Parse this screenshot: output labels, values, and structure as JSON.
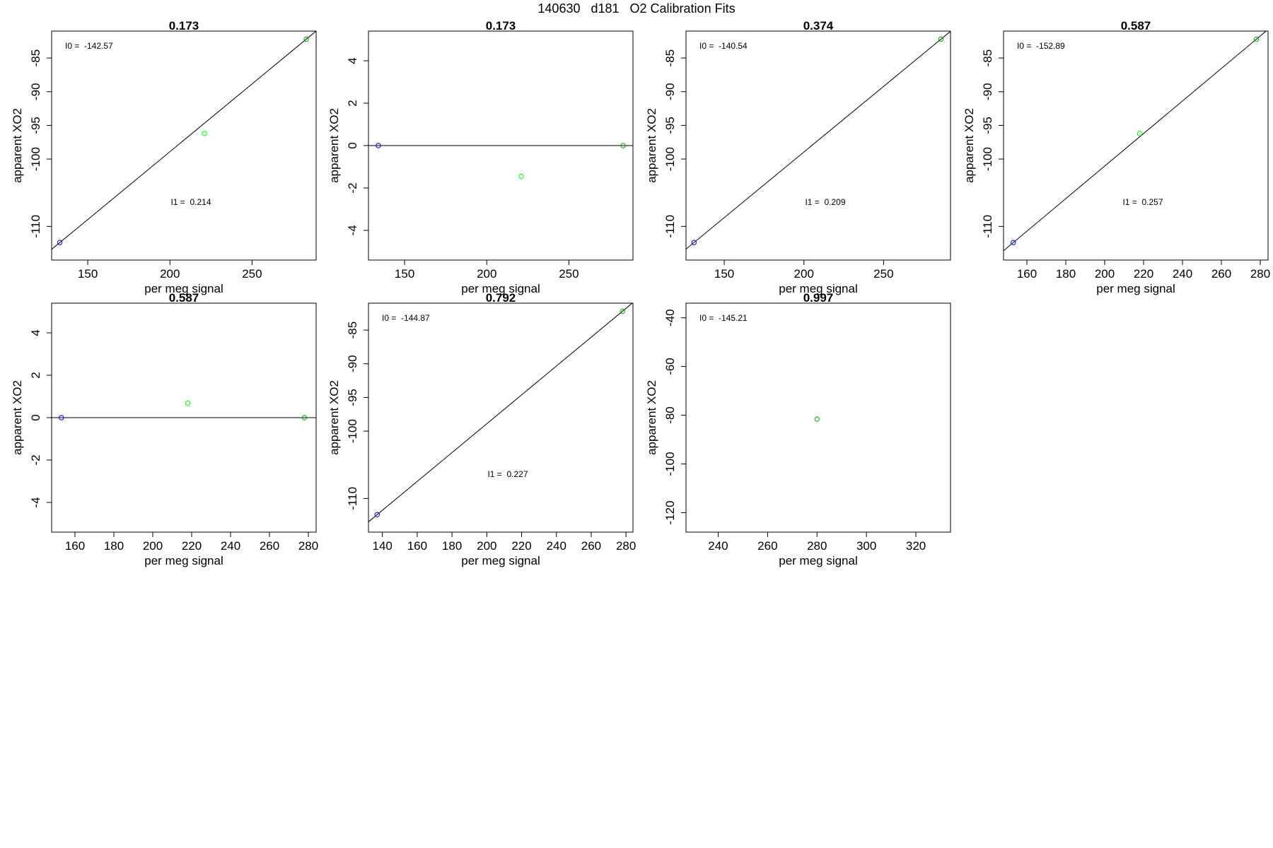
{
  "page": {
    "title": "140630   d181   O2 Calibration Fits"
  },
  "colors": {
    "axis": "#000000",
    "fit_line": "#000000",
    "point_blue": "#0000ff",
    "point_light_green": "#00ff00",
    "point_dark_green": "#00aa00"
  },
  "chart_data": [
    {
      "type": "scatter",
      "title": "0.173",
      "xlabel": "per meg signal",
      "ylabel": "apparent XO2",
      "xlim": [
        128,
        289
      ],
      "ylim": [
        -115,
        -81
      ],
      "xticks": [
        150,
        200,
        250
      ],
      "yticks": [
        -110,
        -100,
        -95,
        -90,
        -85
      ],
      "points": [
        {
          "x": 133,
          "y": -112.4,
          "color": "blue"
        },
        {
          "x": 221,
          "y": -96.2,
          "color": "light_green"
        },
        {
          "x": 283,
          "y": -82.2,
          "color": "dark_green"
        }
      ],
      "fit_line": [
        [
          133,
          -112.4
        ],
        [
          283,
          -82.2
        ]
      ],
      "annotations": [
        {
          "label": "I0 =  -142.57",
          "pos": "top-left"
        },
        {
          "label": "I1 =  0.214",
          "pos": "mid-center"
        }
      ]
    },
    {
      "type": "scatter",
      "title": "0.173",
      "xlabel": "per meg signal",
      "ylabel": "apparent XO2",
      "xlim": [
        128,
        289
      ],
      "ylim": [
        -5.4,
        5.4
      ],
      "xticks": [
        150,
        200,
        250
      ],
      "yticks": [
        -4,
        -2,
        0,
        2,
        4
      ],
      "points": [
        {
          "x": 134,
          "y": 0,
          "color": "blue"
        },
        {
          "x": 221,
          "y": -1.45,
          "color": "light_green"
        },
        {
          "x": 283,
          "y": 0,
          "color": "dark_green"
        }
      ],
      "fit_line": [
        [
          128,
          0
        ],
        [
          289,
          0
        ]
      ],
      "annotations": []
    },
    {
      "type": "scatter",
      "title": "0.374",
      "xlabel": "per meg signal",
      "ylabel": "apparent XO2",
      "xlim": [
        126,
        292
      ],
      "ylim": [
        -115,
        -81
      ],
      "xticks": [
        150,
        200,
        250
      ],
      "yticks": [
        -110,
        -100,
        -95,
        -90,
        -85
      ],
      "points": [
        {
          "x": 131,
          "y": -112.4,
          "color": "blue"
        },
        {
          "x": 286,
          "y": -82.2,
          "color": "dark_green"
        }
      ],
      "fit_line": [
        [
          131,
          -112.4
        ],
        [
          286,
          -82.2
        ]
      ],
      "annotations": [
        {
          "label": "I0 =  -140.54",
          "pos": "top-left"
        },
        {
          "label": "I1 =  0.209",
          "pos": "mid-center"
        }
      ]
    },
    {
      "type": "scatter",
      "title": "0.587",
      "xlabel": "per meg signal",
      "ylabel": "apparent XO2",
      "xlim": [
        148,
        284
      ],
      "ylim": [
        -115,
        -81
      ],
      "xticks": [
        160,
        180,
        200,
        220,
        240,
        260,
        280
      ],
      "yticks": [
        -110,
        -100,
        -95,
        -90,
        -85
      ],
      "points": [
        {
          "x": 153,
          "y": -112.4,
          "color": "blue"
        },
        {
          "x": 218,
          "y": -96.2,
          "color": "light_green"
        },
        {
          "x": 278,
          "y": -82.2,
          "color": "dark_green"
        }
      ],
      "fit_line": [
        [
          153,
          -112.4
        ],
        [
          278,
          -82.2
        ]
      ],
      "annotations": [
        {
          "label": "I0 =  -152.89",
          "pos": "top-left"
        },
        {
          "label": "I1 =  0.257",
          "pos": "mid-center"
        }
      ]
    },
    {
      "type": "scatter",
      "title": "0.587",
      "xlabel": "per meg signal",
      "ylabel": "apparent XO2",
      "xlim": [
        148,
        284
      ],
      "ylim": [
        -5.4,
        5.4
      ],
      "xticks": [
        160,
        180,
        200,
        220,
        240,
        260,
        280
      ],
      "yticks": [
        -4,
        -2,
        0,
        2,
        4
      ],
      "points": [
        {
          "x": 153,
          "y": 0,
          "color": "blue"
        },
        {
          "x": 218,
          "y": 0.68,
          "color": "light_green"
        },
        {
          "x": 278,
          "y": 0,
          "color": "dark_green"
        }
      ],
      "fit_line": [
        [
          148,
          0
        ],
        [
          284,
          0
        ]
      ],
      "annotations": []
    },
    {
      "type": "scatter",
      "title": "0.792",
      "xlabel": "per meg signal",
      "ylabel": "apparent XO2",
      "xlim": [
        132,
        284
      ],
      "ylim": [
        -115,
        -81
      ],
      "xticks": [
        140,
        160,
        180,
        200,
        220,
        240,
        260,
        280
      ],
      "yticks": [
        -110,
        -100,
        -95,
        -90,
        -85
      ],
      "points": [
        {
          "x": 137,
          "y": -112.4,
          "color": "blue"
        },
        {
          "x": 278,
          "y": -82.2,
          "color": "dark_green"
        }
      ],
      "fit_line": [
        [
          137,
          -112.4
        ],
        [
          278,
          -82.2
        ]
      ],
      "annotations": [
        {
          "label": "I0 =  -144.87",
          "pos": "top-left"
        },
        {
          "label": "I1 =  0.227",
          "pos": "mid-center"
        }
      ]
    },
    {
      "type": "scatter",
      "title": "0.997",
      "xlabel": "per meg signal",
      "ylabel": "apparent XO2",
      "xlim": [
        227,
        334
      ],
      "ylim": [
        -128,
        -34
      ],
      "xticks": [
        240,
        260,
        280,
        300,
        320
      ],
      "yticks": [
        -120,
        -100,
        -80,
        -60,
        -40
      ],
      "points": [
        {
          "x": 280,
          "y": -81.6,
          "color": "dark_green"
        }
      ],
      "fit_line": null,
      "annotations": [
        {
          "label": "I0 =  -145.21",
          "pos": "top-left"
        }
      ]
    }
  ]
}
